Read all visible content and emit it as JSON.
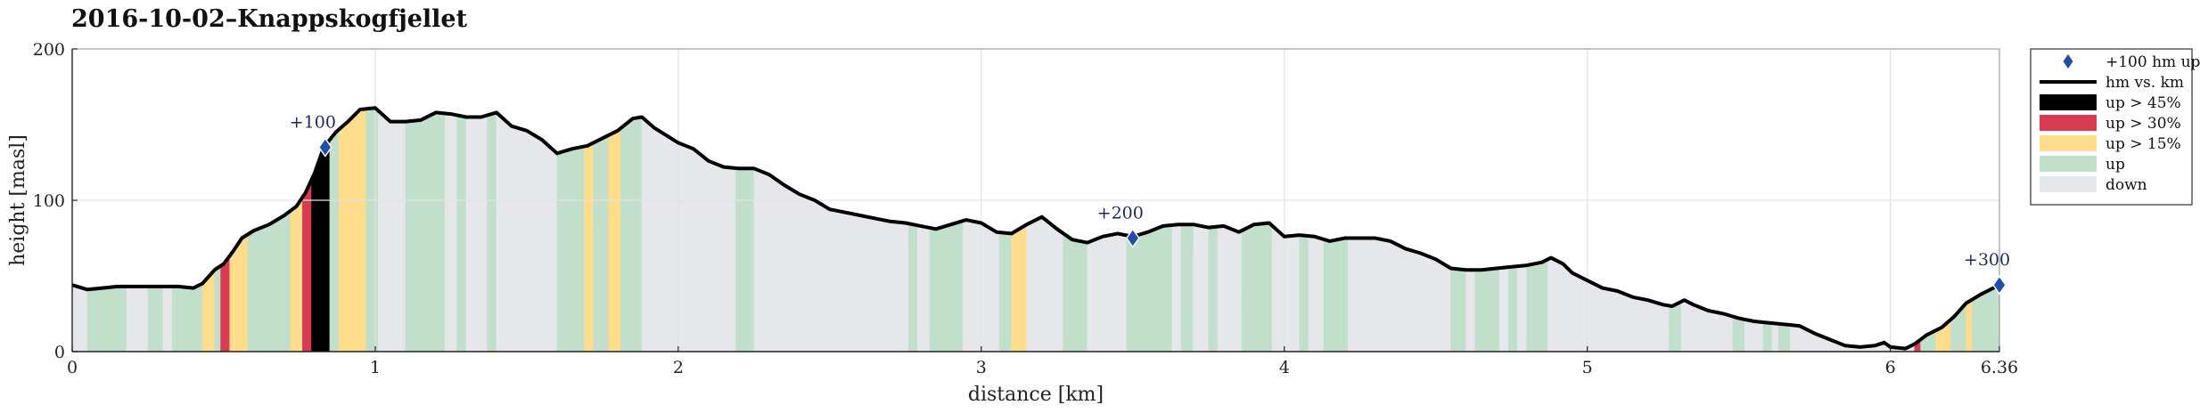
{
  "chart_data": {
    "type": "area",
    "title": "2016-10-02–Knappskogfjellet",
    "xlabel": "distance [km]",
    "ylabel": "height [masl]",
    "xlim": [
      0,
      6.36
    ],
    "ylim": [
      0,
      200
    ],
    "xticks": [
      "0",
      "1",
      "2",
      "3",
      "4",
      "5",
      "6",
      "6.36"
    ],
    "xtick_values": [
      0,
      1,
      2,
      3,
      4,
      5,
      6,
      6.36
    ],
    "yticks": [
      "0",
      "100",
      "200"
    ],
    "ytick_values": [
      0,
      100,
      200
    ],
    "grid": true,
    "legend_position": "outside-right",
    "colors": {
      "profile": "#000000",
      "down": "#e6e7eb",
      "up": "#c2dfcc",
      "up15": "#fddc8c",
      "up30": "#d93c52",
      "up45": "#000000",
      "marker": "#1f4fa8",
      "grid": "#e3e3e3"
    },
    "legend": [
      {
        "key": "marker",
        "label": "+100 hm up"
      },
      {
        "key": "profile",
        "label": "hm vs. km"
      },
      {
        "key": "up45",
        "label": "up > 45%"
      },
      {
        "key": "up30",
        "label": "up > 30%"
      },
      {
        "key": "up15",
        "label": "up > 15%"
      },
      {
        "key": "up",
        "label": "up"
      },
      {
        "key": "down",
        "label": "down"
      }
    ],
    "profile": [
      [
        0.0,
        44
      ],
      [
        0.05,
        41
      ],
      [
        0.1,
        42
      ],
      [
        0.15,
        43
      ],
      [
        0.2,
        43
      ],
      [
        0.25,
        43
      ],
      [
        0.3,
        43
      ],
      [
        0.35,
        43
      ],
      [
        0.4,
        42
      ],
      [
        0.43,
        45
      ],
      [
        0.47,
        54
      ],
      [
        0.5,
        58
      ],
      [
        0.53,
        66
      ],
      [
        0.56,
        75
      ],
      [
        0.6,
        80
      ],
      [
        0.65,
        84
      ],
      [
        0.7,
        90
      ],
      [
        0.74,
        96
      ],
      [
        0.77,
        105
      ],
      [
        0.8,
        118
      ],
      [
        0.83,
        135
      ],
      [
        0.87,
        145
      ],
      [
        0.91,
        152
      ],
      [
        0.95,
        160
      ],
      [
        1.0,
        161
      ],
      [
        1.05,
        152
      ],
      [
        1.1,
        152
      ],
      [
        1.15,
        153
      ],
      [
        1.2,
        158
      ],
      [
        1.25,
        157
      ],
      [
        1.3,
        155
      ],
      [
        1.35,
        155
      ],
      [
        1.4,
        158
      ],
      [
        1.45,
        149
      ],
      [
        1.5,
        146
      ],
      [
        1.55,
        140
      ],
      [
        1.6,
        131
      ],
      [
        1.65,
        134
      ],
      [
        1.7,
        136
      ],
      [
        1.75,
        141
      ],
      [
        1.8,
        146
      ],
      [
        1.85,
        154
      ],
      [
        1.88,
        155
      ],
      [
        1.92,
        148
      ],
      [
        2.0,
        138
      ],
      [
        2.05,
        134
      ],
      [
        2.1,
        126
      ],
      [
        2.15,
        122
      ],
      [
        2.2,
        121
      ],
      [
        2.25,
        121
      ],
      [
        2.3,
        117
      ],
      [
        2.35,
        110
      ],
      [
        2.4,
        104
      ],
      [
        2.45,
        100
      ],
      [
        2.5,
        94
      ],
      [
        2.55,
        92
      ],
      [
        2.6,
        90
      ],
      [
        2.65,
        88
      ],
      [
        2.7,
        86
      ],
      [
        2.75,
        85
      ],
      [
        2.8,
        83
      ],
      [
        2.85,
        81
      ],
      [
        2.9,
        84
      ],
      [
        2.95,
        87
      ],
      [
        3.0,
        85
      ],
      [
        3.05,
        79
      ],
      [
        3.1,
        78
      ],
      [
        3.15,
        84
      ],
      [
        3.2,
        89
      ],
      [
        3.25,
        81
      ],
      [
        3.3,
        74
      ],
      [
        3.35,
        72
      ],
      [
        3.4,
        76
      ],
      [
        3.45,
        78
      ],
      [
        3.5,
        76
      ],
      [
        3.55,
        79
      ],
      [
        3.6,
        83
      ],
      [
        3.65,
        84
      ],
      [
        3.7,
        84
      ],
      [
        3.75,
        82
      ],
      [
        3.8,
        83
      ],
      [
        3.85,
        79
      ],
      [
        3.9,
        84
      ],
      [
        3.95,
        85
      ],
      [
        4.0,
        76
      ],
      [
        4.05,
        77
      ],
      [
        4.1,
        76
      ],
      [
        4.15,
        73
      ],
      [
        4.2,
        75
      ],
      [
        4.25,
        75
      ],
      [
        4.3,
        75
      ],
      [
        4.35,
        73
      ],
      [
        4.4,
        68
      ],
      [
        4.45,
        65
      ],
      [
        4.5,
        61
      ],
      [
        4.55,
        55
      ],
      [
        4.6,
        54
      ],
      [
        4.65,
        54
      ],
      [
        4.7,
        55
      ],
      [
        4.75,
        56
      ],
      [
        4.8,
        57
      ],
      [
        4.85,
        59
      ],
      [
        4.88,
        62
      ],
      [
        4.92,
        58
      ],
      [
        4.95,
        52
      ],
      [
        5.0,
        47
      ],
      [
        5.05,
        42
      ],
      [
        5.1,
        40
      ],
      [
        5.15,
        36
      ],
      [
        5.2,
        34
      ],
      [
        5.25,
        31
      ],
      [
        5.28,
        30
      ],
      [
        5.32,
        34
      ],
      [
        5.35,
        31
      ],
      [
        5.4,
        27
      ],
      [
        5.45,
        25
      ],
      [
        5.5,
        22
      ],
      [
        5.55,
        20
      ],
      [
        5.6,
        19
      ],
      [
        5.65,
        18
      ],
      [
        5.7,
        17
      ],
      [
        5.75,
        12
      ],
      [
        5.8,
        8
      ],
      [
        5.85,
        4
      ],
      [
        5.9,
        3
      ],
      [
        5.95,
        4
      ],
      [
        5.98,
        6
      ],
      [
        6.0,
        3
      ],
      [
        6.05,
        2
      ],
      [
        6.08,
        5
      ],
      [
        6.12,
        11
      ],
      [
        6.17,
        16
      ],
      [
        6.21,
        23
      ],
      [
        6.25,
        32
      ],
      [
        6.3,
        38
      ],
      [
        6.36,
        44
      ]
    ],
    "segments": [
      {
        "from": 0.0,
        "to": 0.05,
        "cat": "down"
      },
      {
        "from": 0.05,
        "to": 0.18,
        "cat": "up"
      },
      {
        "from": 0.18,
        "to": 0.25,
        "cat": "down"
      },
      {
        "from": 0.25,
        "to": 0.3,
        "cat": "up"
      },
      {
        "from": 0.3,
        "to": 0.33,
        "cat": "down"
      },
      {
        "from": 0.33,
        "to": 0.43,
        "cat": "up"
      },
      {
        "from": 0.43,
        "to": 0.47,
        "cat": "up15"
      },
      {
        "from": 0.47,
        "to": 0.49,
        "cat": "up"
      },
      {
        "from": 0.49,
        "to": 0.52,
        "cat": "up30"
      },
      {
        "from": 0.52,
        "to": 0.58,
        "cat": "up15"
      },
      {
        "from": 0.58,
        "to": 0.72,
        "cat": "up"
      },
      {
        "from": 0.72,
        "to": 0.76,
        "cat": "up15"
      },
      {
        "from": 0.76,
        "to": 0.79,
        "cat": "up30"
      },
      {
        "from": 0.79,
        "to": 0.85,
        "cat": "up45"
      },
      {
        "from": 0.85,
        "to": 0.88,
        "cat": "up"
      },
      {
        "from": 0.88,
        "to": 0.97,
        "cat": "up15"
      },
      {
        "from": 0.97,
        "to": 1.01,
        "cat": "up"
      },
      {
        "from": 1.01,
        "to": 1.1,
        "cat": "down"
      },
      {
        "from": 1.1,
        "to": 1.23,
        "cat": "up"
      },
      {
        "from": 1.23,
        "to": 1.27,
        "cat": "down"
      },
      {
        "from": 1.27,
        "to": 1.3,
        "cat": "up"
      },
      {
        "from": 1.3,
        "to": 1.37,
        "cat": "down"
      },
      {
        "from": 1.37,
        "to": 1.4,
        "cat": "up"
      },
      {
        "from": 1.4,
        "to": 1.6,
        "cat": "down"
      },
      {
        "from": 1.6,
        "to": 1.69,
        "cat": "up"
      },
      {
        "from": 1.69,
        "to": 1.72,
        "cat": "up15"
      },
      {
        "from": 1.72,
        "to": 1.77,
        "cat": "up"
      },
      {
        "from": 1.77,
        "to": 1.81,
        "cat": "up15"
      },
      {
        "from": 1.81,
        "to": 1.88,
        "cat": "up"
      },
      {
        "from": 1.88,
        "to": 2.19,
        "cat": "down"
      },
      {
        "from": 2.19,
        "to": 2.25,
        "cat": "up"
      },
      {
        "from": 2.25,
        "to": 2.76,
        "cat": "down"
      },
      {
        "from": 2.76,
        "to": 2.79,
        "cat": "up"
      },
      {
        "from": 2.79,
        "to": 2.83,
        "cat": "down"
      },
      {
        "from": 2.83,
        "to": 2.94,
        "cat": "up"
      },
      {
        "from": 2.94,
        "to": 3.06,
        "cat": "down"
      },
      {
        "from": 3.06,
        "to": 3.1,
        "cat": "up"
      },
      {
        "from": 3.1,
        "to": 3.15,
        "cat": "up15"
      },
      {
        "from": 3.15,
        "to": 3.27,
        "cat": "down"
      },
      {
        "from": 3.27,
        "to": 3.35,
        "cat": "up"
      },
      {
        "from": 3.35,
        "to": 3.48,
        "cat": "down"
      },
      {
        "from": 3.48,
        "to": 3.63,
        "cat": "up"
      },
      {
        "from": 3.63,
        "to": 3.66,
        "cat": "down"
      },
      {
        "from": 3.66,
        "to": 3.7,
        "cat": "up"
      },
      {
        "from": 3.7,
        "to": 3.75,
        "cat": "down"
      },
      {
        "from": 3.75,
        "to": 3.78,
        "cat": "up"
      },
      {
        "from": 3.78,
        "to": 3.86,
        "cat": "down"
      },
      {
        "from": 3.86,
        "to": 3.96,
        "cat": "up"
      },
      {
        "from": 3.96,
        "to": 4.05,
        "cat": "down"
      },
      {
        "from": 4.05,
        "to": 4.08,
        "cat": "up"
      },
      {
        "from": 4.08,
        "to": 4.13,
        "cat": "down"
      },
      {
        "from": 4.13,
        "to": 4.21,
        "cat": "up"
      },
      {
        "from": 4.21,
        "to": 4.55,
        "cat": "down"
      },
      {
        "from": 4.55,
        "to": 4.6,
        "cat": "up"
      },
      {
        "from": 4.6,
        "to": 4.63,
        "cat": "down"
      },
      {
        "from": 4.63,
        "to": 4.71,
        "cat": "up"
      },
      {
        "from": 4.71,
        "to": 4.74,
        "cat": "down"
      },
      {
        "from": 4.74,
        "to": 4.77,
        "cat": "up"
      },
      {
        "from": 4.77,
        "to": 4.8,
        "cat": "down"
      },
      {
        "from": 4.8,
        "to": 4.87,
        "cat": "up"
      },
      {
        "from": 4.87,
        "to": 5.27,
        "cat": "down"
      },
      {
        "from": 5.27,
        "to": 5.31,
        "cat": "up"
      },
      {
        "from": 5.31,
        "to": 5.48,
        "cat": "down"
      },
      {
        "from": 5.48,
        "to": 5.52,
        "cat": "up"
      },
      {
        "from": 5.52,
        "to": 5.58,
        "cat": "down"
      },
      {
        "from": 5.58,
        "to": 5.61,
        "cat": "up"
      },
      {
        "from": 5.61,
        "to": 5.63,
        "cat": "down"
      },
      {
        "from": 5.63,
        "to": 5.67,
        "cat": "up"
      },
      {
        "from": 5.67,
        "to": 6.08,
        "cat": "down"
      },
      {
        "from": 6.08,
        "to": 6.1,
        "cat": "up30"
      },
      {
        "from": 6.1,
        "to": 6.15,
        "cat": "up"
      },
      {
        "from": 6.15,
        "to": 6.2,
        "cat": "up15"
      },
      {
        "from": 6.2,
        "to": 6.25,
        "cat": "up"
      },
      {
        "from": 6.25,
        "to": 6.27,
        "cat": "up15"
      },
      {
        "from": 6.27,
        "to": 6.36,
        "cat": "up"
      }
    ],
    "markers": [
      {
        "x": 0.835,
        "y": 135,
        "label": "+100"
      },
      {
        "x": 3.5,
        "y": 75,
        "label": "+200"
      },
      {
        "x": 6.36,
        "y": 44,
        "label": "+300"
      }
    ]
  }
}
